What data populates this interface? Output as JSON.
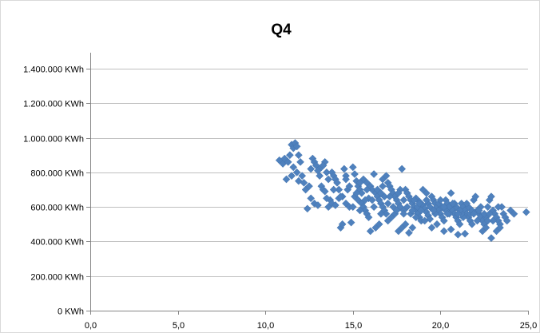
{
  "chart_data": {
    "type": "scatter",
    "title": "Q4",
    "xlabel": "",
    "ylabel": "",
    "xlim": [
      0,
      25
    ],
    "ylim": [
      0,
      1400000
    ],
    "x_ticks": [
      0,
      5,
      10,
      15,
      20,
      25
    ],
    "x_tick_labels": [
      "0,0",
      "5,0",
      "10,0",
      "15,0",
      "20,0",
      "25,0"
    ],
    "y_ticks": [
      0,
      200000,
      400000,
      600000,
      800000,
      1000000,
      1200000,
      1400000
    ],
    "y_tick_labels": [
      "0 KWh",
      "200.000 KWh",
      "400.000 KWh",
      "600.000 KWh",
      "800.000 KWh",
      "1.000.000 KWh",
      "1.200.000 KWh",
      "1.400.000 KWh"
    ],
    "grid": "horizontal",
    "legend": "none",
    "marker": "diamond",
    "marker_color": "#4f81bd",
    "points": [
      [
        10.8,
        870000
      ],
      [
        11.0,
        850000
      ],
      [
        11.1,
        880000
      ],
      [
        11.2,
        760000
      ],
      [
        11.3,
        860000
      ],
      [
        11.4,
        900000
      ],
      [
        11.5,
        960000
      ],
      [
        11.6,
        940000
      ],
      [
        11.7,
        970000
      ],
      [
        11.8,
        950000
      ],
      [
        11.9,
        900000
      ],
      [
        11.6,
        830000
      ],
      [
        11.8,
        800000
      ],
      [
        12.0,
        860000
      ],
      [
        12.1,
        780000
      ],
      [
        11.5,
        780000
      ],
      [
        11.9,
        750000
      ],
      [
        12.2,
        740000
      ],
      [
        12.3,
        700000
      ],
      [
        12.4,
        590000
      ],
      [
        12.5,
        720000
      ],
      [
        12.6,
        650000
      ],
      [
        12.7,
        880000
      ],
      [
        12.8,
        860000
      ],
      [
        12.9,
        840000
      ],
      [
        13.0,
        810000
      ],
      [
        13.1,
        780000
      ],
      [
        13.2,
        720000
      ],
      [
        13.3,
        700000
      ],
      [
        13.4,
        690000
      ],
      [
        12.8,
        620000
      ],
      [
        13.0,
        610000
      ],
      [
        13.2,
        830000
      ],
      [
        13.4,
        860000
      ],
      [
        13.5,
        800000
      ],
      [
        13.6,
        760000
      ],
      [
        13.7,
        640000
      ],
      [
        13.8,
        800000
      ],
      [
        13.9,
        780000
      ],
      [
        14.0,
        760000
      ],
      [
        13.6,
        600000
      ],
      [
        13.8,
        620000
      ],
      [
        14.0,
        610000
      ],
      [
        14.1,
        740000
      ],
      [
        14.2,
        700000
      ],
      [
        14.3,
        480000
      ],
      [
        14.4,
        500000
      ],
      [
        14.5,
        820000
      ],
      [
        14.6,
        780000
      ],
      [
        14.7,
        700000
      ],
      [
        14.4,
        660000
      ],
      [
        14.6,
        620000
      ],
      [
        14.8,
        600000
      ],
      [
        14.9,
        510000
      ],
      [
        15.0,
        830000
      ],
      [
        15.1,
        790000
      ],
      [
        15.2,
        750000
      ],
      [
        15.3,
        720000
      ],
      [
        15.4,
        700000
      ],
      [
        15.5,
        680000
      ],
      [
        15.1,
        660000
      ],
      [
        15.3,
        640000
      ],
      [
        15.5,
        620000
      ],
      [
        15.6,
        600000
      ],
      [
        15.7,
        580000
      ],
      [
        15.8,
        560000
      ],
      [
        15.9,
        540000
      ],
      [
        16.0,
        460000
      ],
      [
        15.6,
        760000
      ],
      [
        15.8,
        740000
      ],
      [
        16.0,
        720000
      ],
      [
        16.1,
        700000
      ],
      [
        16.2,
        790000
      ],
      [
        16.3,
        680000
      ],
      [
        16.4,
        660000
      ],
      [
        16.5,
        640000
      ],
      [
        16.6,
        620000
      ],
      [
        16.7,
        600000
      ],
      [
        16.8,
        580000
      ],
      [
        16.9,
        560000
      ],
      [
        16.3,
        480000
      ],
      [
        16.5,
        500000
      ],
      [
        16.7,
        760000
      ],
      [
        16.9,
        780000
      ],
      [
        17.0,
        740000
      ],
      [
        17.1,
        720000
      ],
      [
        17.2,
        700000
      ],
      [
        17.3,
        680000
      ],
      [
        17.4,
        660000
      ],
      [
        17.5,
        640000
      ],
      [
        17.0,
        520000
      ],
      [
        17.2,
        540000
      ],
      [
        17.4,
        560000
      ],
      [
        17.6,
        620000
      ],
      [
        17.7,
        600000
      ],
      [
        17.8,
        820000
      ],
      [
        17.9,
        580000
      ],
      [
        18.0,
        700000
      ],
      [
        18.1,
        680000
      ],
      [
        18.2,
        660000
      ],
      [
        17.6,
        460000
      ],
      [
        17.8,
        480000
      ],
      [
        18.0,
        500000
      ],
      [
        18.3,
        640000
      ],
      [
        18.4,
        620000
      ],
      [
        18.5,
        600000
      ],
      [
        18.6,
        580000
      ],
      [
        18.7,
        560000
      ],
      [
        18.8,
        540000
      ],
      [
        18.9,
        520000
      ],
      [
        18.2,
        450000
      ],
      [
        18.4,
        480000
      ],
      [
        18.6,
        650000
      ],
      [
        18.8,
        630000
      ],
      [
        19.0,
        610000
      ],
      [
        19.1,
        590000
      ],
      [
        19.2,
        570000
      ],
      [
        19.3,
        550000
      ],
      [
        19.4,
        530000
      ],
      [
        19.5,
        660000
      ],
      [
        19.0,
        700000
      ],
      [
        19.2,
        680000
      ],
      [
        19.6,
        640000
      ],
      [
        19.7,
        620000
      ],
      [
        19.8,
        600000
      ],
      [
        19.9,
        580000
      ],
      [
        20.0,
        560000
      ],
      [
        20.1,
        540000
      ],
      [
        20.2,
        520000
      ],
      [
        20.3,
        640000
      ],
      [
        19.5,
        480000
      ],
      [
        19.8,
        500000
      ],
      [
        20.4,
        620000
      ],
      [
        20.5,
        600000
      ],
      [
        20.6,
        680000
      ],
      [
        20.7,
        580000
      ],
      [
        20.8,
        560000
      ],
      [
        20.9,
        540000
      ],
      [
        21.0,
        520000
      ],
      [
        21.1,
        500000
      ],
      [
        20.2,
        460000
      ],
      [
        20.6,
        470000
      ],
      [
        21.2,
        620000
      ],
      [
        21.3,
        600000
      ],
      [
        21.4,
        580000
      ],
      [
        21.5,
        560000
      ],
      [
        21.6,
        540000
      ],
      [
        21.7,
        520000
      ],
      [
        21.8,
        500000
      ],
      [
        21.9,
        640000
      ],
      [
        21.0,
        440000
      ],
      [
        21.4,
        445000
      ],
      [
        22.0,
        660000
      ],
      [
        22.1,
        580000
      ],
      [
        22.2,
        560000
      ],
      [
        22.3,
        540000
      ],
      [
        22.4,
        520000
      ],
      [
        22.5,
        500000
      ],
      [
        22.6,
        480000
      ],
      [
        22.7,
        600000
      ],
      [
        22.4,
        460000
      ],
      [
        22.8,
        640000
      ],
      [
        22.9,
        660000
      ],
      [
        23.0,
        580000
      ],
      [
        23.1,
        560000
      ],
      [
        23.2,
        540000
      ],
      [
        23.3,
        520000
      ],
      [
        23.4,
        500000
      ],
      [
        23.5,
        600000
      ],
      [
        23.6,
        560000
      ],
      [
        22.9,
        420000
      ],
      [
        23.2,
        460000
      ],
      [
        23.7,
        540000
      ],
      [
        23.8,
        520000
      ],
      [
        24.0,
        580000
      ],
      [
        24.2,
        560000
      ],
      [
        24.9,
        570000
      ],
      [
        23.4,
        480000
      ],
      [
        22.6,
        540000
      ],
      [
        21.6,
        600000
      ],
      [
        14.2,
        650000
      ],
      [
        14.8,
        720000
      ],
      [
        15.2,
        680000
      ],
      [
        15.9,
        650000
      ],
      [
        16.4,
        700000
      ],
      [
        16.8,
        660000
      ],
      [
        17.3,
        600000
      ],
      [
        17.9,
        640000
      ],
      [
        18.3,
        560000
      ],
      [
        18.7,
        600000
      ],
      [
        19.3,
        620000
      ],
      [
        19.7,
        560000
      ],
      [
        20.1,
        600000
      ],
      [
        20.5,
        560000
      ],
      [
        20.9,
        600000
      ],
      [
        21.3,
        540000
      ],
      [
        21.7,
        560000
      ],
      [
        22.1,
        520000
      ],
      [
        22.5,
        560000
      ],
      [
        23.0,
        520000
      ],
      [
        12.6,
        820000
      ],
      [
        13.3,
        840000
      ],
      [
        13.9,
        700000
      ],
      [
        14.6,
        760000
      ],
      [
        15.4,
        740000
      ],
      [
        16.1,
        640000
      ],
      [
        16.6,
        560000
      ],
      [
        17.1,
        660000
      ],
      [
        17.7,
        700000
      ],
      [
        18.1,
        600000
      ],
      [
        18.5,
        640000
      ],
      [
        18.9,
        580000
      ],
      [
        19.4,
        600000
      ],
      [
        19.9,
        620000
      ],
      [
        20.3,
        580000
      ],
      [
        20.8,
        620000
      ],
      [
        21.2,
        560000
      ],
      [
        21.8,
        580000
      ],
      [
        22.3,
        600000
      ],
      [
        22.8,
        560000
      ],
      [
        15.0,
        600000
      ],
      [
        15.4,
        580000
      ],
      [
        15.7,
        640000
      ],
      [
        16.2,
        600000
      ],
      [
        16.6,
        680000
      ],
      [
        17.0,
        620000
      ],
      [
        17.5,
        580000
      ],
      [
        17.9,
        560000
      ],
      [
        18.4,
        580000
      ],
      [
        18.8,
        620000
      ],
      [
        19.2,
        640000
      ],
      [
        19.6,
        580000
      ],
      [
        20.0,
        640000
      ],
      [
        20.4,
        560000
      ],
      [
        20.7,
        620000
      ],
      [
        21.1,
        580000
      ],
      [
        21.5,
        620000
      ],
      [
        21.9,
        560000
      ],
      [
        22.2,
        580000
      ],
      [
        22.7,
        520000
      ],
      [
        13.5,
        650000
      ],
      [
        14.3,
        660000
      ],
      [
        15.8,
        700000
      ],
      [
        16.7,
        720000
      ],
      [
        17.6,
        680000
      ],
      [
        18.6,
        540000
      ],
      [
        19.1,
        520000
      ],
      [
        20.2,
        600000
      ],
      [
        21.0,
        560000
      ],
      [
        23.3,
        600000
      ]
    ]
  }
}
